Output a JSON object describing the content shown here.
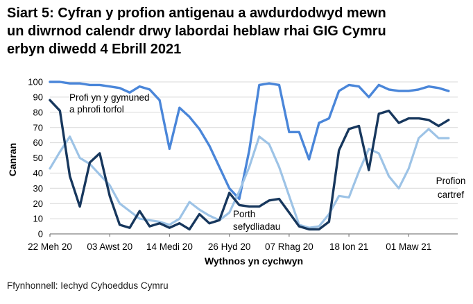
{
  "header": {
    "title_lines": [
      "Siart 5: Cyfran y profion antigenau a awdurdodwyd mewn",
      "un diwrnod calendr drwy labordai heblaw rhai GIG Cymru",
      "erbyn diwedd 4 Ebrill 2021"
    ]
  },
  "footer": {
    "source": "Ffynhonnell: Iechyd Cyhoeddus Cymru"
  },
  "chart_data": {
    "type": "line",
    "title": "Siart 5: Cyfran y profion antigenau a awdurdodwyd mewn un diwrnod calendr drwy labordai heblaw rhai GIG Cymru erbyn diwedd 4 Ebrill 2021",
    "xlabel": "Wythnos yn cychwyn",
    "ylabel": "Canran",
    "ylim": [
      0,
      100
    ],
    "ytick_interval": 10,
    "ytick_labels": [
      "0",
      "10",
      "20",
      "30",
      "40",
      "50",
      "60",
      "70",
      "80",
      "90",
      "100"
    ],
    "grid": true,
    "legend_position": "inline-annotations",
    "x_is_weekly": true,
    "n_points": 41,
    "x_tick_labels": [
      "22 Meh 20",
      "03 Awst 20",
      "14 Medi 20",
      "26 Hyd 20",
      "07 Rhag 20",
      "18 Ion 21",
      "01 Maw 21"
    ],
    "x_tick_week_indices": [
      0,
      6,
      12,
      18,
      24,
      30,
      36
    ],
    "series": [
      {
        "name": "Profi yn y gymuned a phrofi torfol",
        "color": "#4a86d9",
        "values": [
          100,
          100,
          99,
          99,
          98,
          98,
          97,
          96,
          93,
          97,
          95,
          88,
          56,
          83,
          77,
          69,
          58,
          44,
          30,
          23,
          55,
          98,
          99,
          98,
          67,
          67,
          49,
          73,
          76,
          94,
          98,
          97,
          90,
          98,
          95,
          94,
          94,
          95,
          97,
          96,
          94
        ]
      },
      {
        "name": "Porth sefydliadau",
        "color": "#17375d",
        "values": [
          88,
          81,
          38,
          18,
          47,
          53,
          25,
          6,
          4,
          15,
          5,
          7,
          4,
          7,
          3,
          13,
          7,
          9,
          27,
          19,
          18,
          18,
          22,
          23,
          14,
          5,
          3,
          3,
          8,
          55,
          69,
          71,
          42,
          79,
          81,
          73,
          76,
          76,
          75,
          71,
          75
        ]
      },
      {
        "name": "Profion cartref",
        "color": "#9dc3e6",
        "values": [
          43,
          54,
          64,
          50,
          46,
          39,
          32,
          20,
          15,
          10,
          9,
          8,
          6,
          10,
          21,
          16,
          12,
          9,
          14,
          28,
          44,
          64,
          59,
          44,
          25,
          6,
          4,
          5,
          13,
          25,
          24,
          41,
          56,
          53,
          38,
          30,
          43,
          63,
          69,
          63,
          63
        ]
      }
    ],
    "annotations": [
      {
        "id": "gymuned",
        "lines": [
          "Profi yn y gymuned",
          "a phrofi torfol"
        ]
      },
      {
        "id": "porth",
        "lines": [
          "Porth",
          "sefydliadau"
        ]
      },
      {
        "id": "cartref",
        "lines": [
          "Profion",
          "cartref"
        ]
      }
    ],
    "colors": {
      "grid": "#d9d9d9",
      "axis": "#808080",
      "text": "#000000"
    }
  }
}
